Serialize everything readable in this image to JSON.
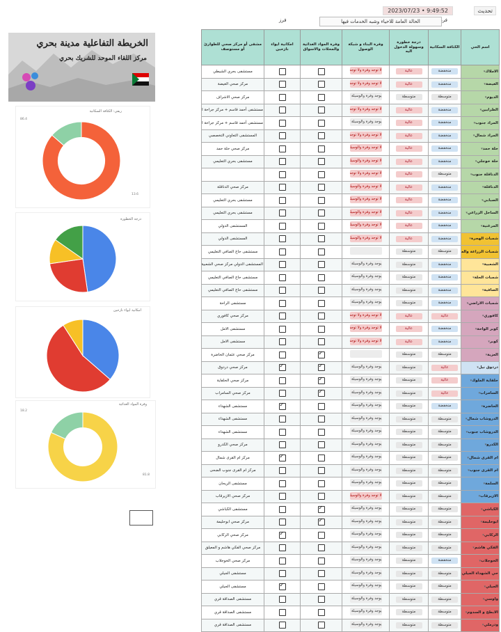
{
  "top": {
    "timestamp": "2023/07/23 • 9:49:52",
    "label_right": "تحديث",
    "status": "الحالة العامة للاحياء وشبه الخدمات فيها",
    "small_right": "فرز",
    "small_left": "فرز"
  },
  "headers": [
    "اسم الحي",
    "الكثافة السكانية",
    "درجة خطورة وسهولة الدخول اليه",
    "وفرة البناء و شبكة الوصول",
    "وفرة المواد الغذائية والمحلات والاسواق",
    "امكانية ايواء نازحين",
    "مشفى أو مركز صحي للطوارئ أو مستوصف"
  ],
  "rows": [
    {
      "name": "الاملاك",
      "density": "منخفضة",
      "danger": "عالية",
      "water": "لا توجد وفرة ولا توجد وسيلة بديلة",
      "food": false,
      "shelter": false,
      "health": "مستشفى بحري الشيطي"
    },
    {
      "name": "الغيضة",
      "density": "منخفضة",
      "danger": "عالية",
      "water": "لا توجد وفرة ولا توجد وسيلة بديلة",
      "food": false,
      "shelter": false,
      "health": "مركز صحي الغيضة"
    },
    {
      "name": "الديوم",
      "density": "متوسطة",
      "danger": "متوسطة",
      "water": "يوجد وفرة والوسيلة تكثر",
      "food": false,
      "shelter": false,
      "health": "مركز صحي الاشراف"
    },
    {
      "name": "الطرابين",
      "density": "منخفضة",
      "danger": "عالية",
      "water": "لا توجد وفرة ولا توجد وسيلة بديلة",
      "food": false,
      "shelter": false,
      "health": "مستشفى أحمد قاسم + مركز جراحة القلب و زراعة الكلى"
    },
    {
      "name": "المراد جنوب",
      "density": "منخفضة",
      "danger": "عالية",
      "water": "يوجد وفرة والوسيلة تكثر",
      "food": false,
      "shelter": false,
      "health": "مستشفى أحمد قاسم + مركز جراحة القلب و زراعة الكلى"
    },
    {
      "name": "المراد شمال",
      "density": "منخفضة",
      "danger": "عالية",
      "water": "لا توجد وفرة ولا توجد وسيلة بديلة",
      "food": false,
      "shelter": false,
      "health": "المستشفى التعاوني التخصصي"
    },
    {
      "name": "حلة حمد",
      "density": "منخفضة",
      "danger": "عالية",
      "water": "لا توجد وفرة والوسيلة غير",
      "food": false,
      "shelter": false,
      "health": "مركز صحي حلة حمد"
    },
    {
      "name": "حلة خوجلي",
      "density": "منخفضة",
      "danger": "عالية",
      "water": "لا توجد وفرة والوسيلة غير",
      "food": false,
      "shelter": false,
      "health": "مستشفى بحري التعليمي"
    },
    {
      "name": "الدناقلة جنوب",
      "density": "متوسطة",
      "danger": "عالية",
      "water": "لا توجد وفرة ولا توجد وسيلة بديلة",
      "food": false,
      "shelter": false,
      "health": ""
    },
    {
      "name": "الدناقلة",
      "density": "منخفضة",
      "danger": "عالية",
      "water": "لا توجد وفرة والوسيلة غير",
      "food": false,
      "shelter": false,
      "health": "مركز صحي الدناقلة"
    },
    {
      "name": "الصبابي",
      "density": "منخفضة",
      "danger": "عالية",
      "water": "لا توجد وفرة والوسيلة غير",
      "food": false,
      "shelter": false,
      "health": "مستشفى بحري التعليمي"
    },
    {
      "name": "الساحل الزراعي",
      "density": "منخفضة",
      "danger": "عالية",
      "water": "لا توجد وفرة والوسيلة غير",
      "food": false,
      "shelter": false,
      "health": "مستشفى بحري التعليمي"
    },
    {
      "name": "المرغنية",
      "density": "منخفضة",
      "danger": "عالية",
      "water": "لا توجد وفرة والوسيلة غير",
      "food": false,
      "shelter": false,
      "health": "المستشفى الدولي"
    },
    {
      "name": "شمبات الهجرة",
      "density": "منخفضة",
      "danger": "عالية",
      "water": "لا توجد وفرة والوسيلة غير",
      "food": false,
      "shelter": false,
      "health": "المستشفى الدولي"
    },
    {
      "name": "شمبات الزراعة والعرضي",
      "density": "متوسطة",
      "danger": "متوسطة",
      "water": "",
      "food": false,
      "shelter": false,
      "health": "مستشفى حاج الصافي التعليمي"
    },
    {
      "name": "الشعبية",
      "density": "منخفضة",
      "danger": "متوسطة",
      "water": "يوجد وفرة والوسيلة تكثر",
      "food": false,
      "shelter": false,
      "health": "المستشفى الدولي مركز صحي الشعبية شمال"
    },
    {
      "name": "شمبات الحلة",
      "density": "منخفضة",
      "danger": "متوسطة",
      "water": "يوجد وفرة والوسيلة تكثر",
      "food": false,
      "shelter": false,
      "health": "مستشفى حاج الصافي التعليمي"
    },
    {
      "name": "الصافية",
      "density": "منخفضة",
      "danger": "متوسطة",
      "water": "يوجد وفرة والوسيلة تكثر",
      "food": false,
      "shelter": false,
      "health": "مستشفى حاج الصافي التعليمي"
    },
    {
      "name": "شمبات الاراضي",
      "density": "منخفضة",
      "danger": "متوسطة",
      "water": "يوجد وفرة والوسيلة تكثر",
      "food": false,
      "shelter": false,
      "health": "مستشفى الراحة"
    },
    {
      "name": "كافوري",
      "density": "عالية",
      "danger": "عالية",
      "water": "لا توجد وفرة ولا توجد وسيلة بديلة",
      "food": false,
      "shelter": false,
      "health": "مركز صحي كافوري"
    },
    {
      "name": "كوبر الواحة",
      "density": "منخفضة",
      "danger": "عالية",
      "water": "لا توجد وفرة ولا توجد وسيلة بديلة",
      "food": false,
      "shelter": false,
      "health": "مستشفى الامل"
    },
    {
      "name": "كوبر",
      "density": "منخفضة",
      "danger": "عالية",
      "water": "لا توجد وفرة ولا توجد وسيلة بديلة",
      "food": false,
      "shelter": false,
      "health": "مستشفى الامل"
    },
    {
      "name": "العزبة",
      "density": "متوسطة",
      "danger": "متوسطة",
      "water": "",
      "food": true,
      "shelter": false,
      "health": "مركز صحي عثمان الحاضرة"
    },
    {
      "name": "دردوق نيل",
      "density": "عالية",
      "danger": "متوسطة",
      "water": "يوجد وفرة والوسيلة المعتادة",
      "food": true,
      "shelter": true,
      "health": "مركز صحي دردوق"
    },
    {
      "name": "حلفاية الملوك",
      "density": "عالية",
      "danger": "متوسطة",
      "water": "يوجد وفرة والوسيلة المعتادة",
      "food": true,
      "shelter": false,
      "health": "مركز صحي الحلفاية"
    },
    {
      "name": "السامراب",
      "density": "عالية",
      "danger": "متوسطة",
      "water": "يوجد وفرة والوسيلة المعتادة",
      "food": true,
      "shelter": false,
      "health": "مركز صحي السامراب"
    },
    {
      "name": "الحاضرة",
      "density": "منخفضة",
      "danger": "متوسطة",
      "water": "يوجد وفرة والوسيلة المعتادة",
      "food": false,
      "shelter": true,
      "health": "مستشفى الشهداء"
    },
    {
      "name": "الدروشاب شمال",
      "density": "متوسطة",
      "danger": "متوسطة",
      "water": "يوجد وفرة والوسيلة المعتادة",
      "food": false,
      "shelter": false,
      "health": "مستشفى الشهداء"
    },
    {
      "name": "الدروشاب جنوب",
      "density": "متوسطة",
      "danger": "متوسطة",
      "water": "يوجد وفرة والوسيلة المعتادة",
      "food": false,
      "shelter": false,
      "health": "مستشفى الشهداء"
    },
    {
      "name": "الكدرو",
      "density": "متوسطة",
      "danger": "متوسطة",
      "water": "يوجد وفرة والوسيلة المعتادة",
      "food": false,
      "shelter": false,
      "health": "مركز صحي الكدرو"
    },
    {
      "name": "ام القرى شمال",
      "density": "متوسطة",
      "danger": "متوسطة",
      "water": "يوجد وفرة والوسيلة المعتادة",
      "food": false,
      "shelter": true,
      "health": "مركز ام القرى شمال"
    },
    {
      "name": "ام القرى جنوب",
      "density": "متوسطة",
      "danger": "متوسطة",
      "water": "يوجد وفرة والوسيلة المعتادة",
      "food": false,
      "shelter": false,
      "health": "مركز ام القرى جنوب الضحى"
    },
    {
      "name": "السلمة",
      "density": "متوسطة",
      "danger": "متوسطة",
      "water": "يوجد وفرة والوسيلة المعتادة",
      "food": false,
      "shelter": false,
      "health": "مستشفى الريحان"
    },
    {
      "name": "الازيرقاب",
      "density": "متوسطة",
      "danger": "متوسطة",
      "water": "لا توجد وفرة والوسيلة غير",
      "food": false,
      "shelter": false,
      "health": "مركز صحي الازيرقاب"
    },
    {
      "name": "الكباشي",
      "density": "متوسطة",
      "danger": "متوسطة",
      "water": "يوجد وفرة والوسيلة المعتادة",
      "food": true,
      "shelter": false,
      "health": "مستشفى الكباشي"
    },
    {
      "name": "ابوحليمة",
      "density": "متوسطة",
      "danger": "متوسطة",
      "water": "يوجد وفرة والوسيلة المعتادة",
      "food": true,
      "shelter": false,
      "health": "مركز صحي ابوحليمة"
    },
    {
      "name": "الركابي",
      "density": "متوسطة",
      "danger": "متوسطة",
      "water": "يوجد وفرة والوسيلة المعتادة",
      "food": false,
      "shelter": true,
      "health": "مركز صحي الركابي"
    },
    {
      "name": "الفكي هاشم",
      "density": "متوسطة",
      "danger": "متوسطة",
      "water": "يوجد وفرة والوسيلة المعتادة",
      "food": false,
      "shelter": false,
      "health": "مركز صحي الفكي هاشم و المعيلق"
    },
    {
      "name": "الخوجلاب",
      "density": "منخفضة",
      "danger": "متوسطة",
      "water": "يوجد وفرة والوسيلة المعتادة",
      "food": false,
      "shelter": false,
      "health": "مركز صحي الخوجلاب"
    },
    {
      "name": "حي الشهداء الجيلي",
      "density": "متوسطة",
      "danger": "متوسطة",
      "water": "يوجد وفرة والوسيلة المعتادة",
      "food": false,
      "shelter": false,
      "health": "مستشفى الجيلي"
    },
    {
      "name": "الجيلي",
      "density": "متوسطة",
      "danger": "متوسطة",
      "water": "يوجد وفرة والوسيلة المعتادة",
      "food": false,
      "shelter": true,
      "health": "مستشفى الجيلي"
    },
    {
      "name": "واوسي",
      "density": "متوسطة",
      "danger": "متوسطة",
      "water": "يوجد وفرة والوسيلة المعتادة",
      "food": false,
      "shelter": false,
      "health": "مستشفى الصداقة قري"
    },
    {
      "name": "الابطح و السدوم",
      "density": "متوسطة",
      "danger": "متوسطة",
      "water": "يوجد وفرة والوسيلة المعتادة",
      "food": false,
      "shelter": false,
      "health": "مستشفى الصداقة قري"
    },
    {
      "name": "ودرملي",
      "density": "متوسطة",
      "danger": "متوسطة",
      "water": "يوجد وفرة والوسيلة المعتادة",
      "food": false,
      "shelter": false,
      "health": "مستشفى الصداقة قري"
    }
  ],
  "name_colors": [
    "#b6d7a8",
    "#b6d7a8",
    "#b6d7a8",
    "#b6d7a8",
    "#b6d7a8",
    "#b6d7a8",
    "#b6d7a8",
    "#b6d7a8",
    "#b6d7a8",
    "#b6d7a8",
    "#b6d7a8",
    "#b6d7a8",
    "#b6d7a8",
    "#f1c232",
    "#f1c232",
    "#ffe599",
    "#ffe599",
    "#ffe599",
    "#d5a6bd",
    "#d5a6bd",
    "#d5a6bd",
    "#d5a6bd",
    "#d5a6bd",
    "#cfe2f3",
    "#6fa8dc",
    "#6fa8dc",
    "#6fa8dc",
    "#6fa8dc",
    "#6fa8dc",
    "#6fa8dc",
    "#6fa8dc",
    "#6fa8dc",
    "#6fa8dc",
    "#6fa8dc",
    "#e06666",
    "#e06666",
    "#e06666",
    "#e06666",
    "#e06666",
    "#e06666",
    "#e06666",
    "#e06666",
    "#e06666",
    "#e06666"
  ],
  "banner": {
    "title": "الخريطة التفاعلية مدينة بحري",
    "subtitle": "مركز اللقاء الموحد للشريك بحري"
  },
  "charts": {
    "c1": {
      "title": "ريفي: الكثافة السكانية",
      "chart_data": {
        "type": "pie",
        "donut": true,
        "slices": [
          {
            "label": "منخفضة",
            "value": 86.4,
            "color": "#f4623a"
          },
          {
            "label": "متوسطة",
            "value": 13.6,
            "color": "#8ed1a6"
          }
        ]
      },
      "label_top": "86.4",
      "label_bot": "13.6"
    },
    "c2": {
      "title": "درجة الخطورة",
      "chart_data": {
        "type": "pie",
        "donut": false,
        "slices": [
          {
            "label": "1",
            "value": 47.7,
            "color": "#4a86e8"
          },
          {
            "label": "2",
            "value": 25,
            "color": "#e03c31"
          },
          {
            "label": "3",
            "value": 12,
            "color": "#f7c026"
          },
          {
            "label": "4",
            "value": 15.3,
            "color": "#43a047"
          }
        ]
      }
    },
    "c3": {
      "title": "امكانية ايواء نازحين",
      "chart_data": {
        "type": "pie",
        "donut": false,
        "slices": [
          {
            "label": "1",
            "value": 36.4,
            "color": "#4a86e8"
          },
          {
            "label": "2",
            "value": 54.5,
            "color": "#e03c31"
          },
          {
            "label": "3",
            "value": 9.1,
            "color": "#f7c026"
          }
        ]
      }
    },
    "c4": {
      "title": "وفرة المواد الغذائية",
      "chart_data": {
        "type": "pie",
        "donut": true,
        "slices": [
          {
            "label": "1",
            "value": 81.8,
            "color": "#f7d348"
          },
          {
            "label": "2",
            "value": 18.2,
            "color": "#8ed1a6"
          }
        ]
      },
      "label_top": "18.2",
      "label_bot": "81.8"
    }
  }
}
